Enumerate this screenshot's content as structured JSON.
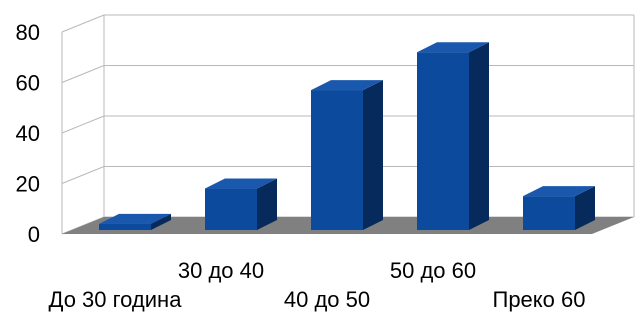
{
  "chart_data": {
    "type": "bar",
    "title": "",
    "xlabel": "",
    "ylabel": "",
    "categories": [
      "До 30 година",
      "30 до 40",
      "40 до 50",
      "50 до 60",
      "Преко 60"
    ],
    "values": [
      4,
      18,
      57,
      72,
      15
    ],
    "ylim": [
      0,
      80
    ],
    "yticks": [
      "0",
      "20",
      "40",
      "60",
      "80"
    ],
    "grid": true,
    "legend": "none",
    "style": "3d",
    "colors": {
      "bar_front": "#0b4a9c",
      "bar_top": "#1a58ad",
      "bar_side": "#062a5c",
      "floor": "#808080",
      "grid": "#b9b9b9"
    }
  }
}
